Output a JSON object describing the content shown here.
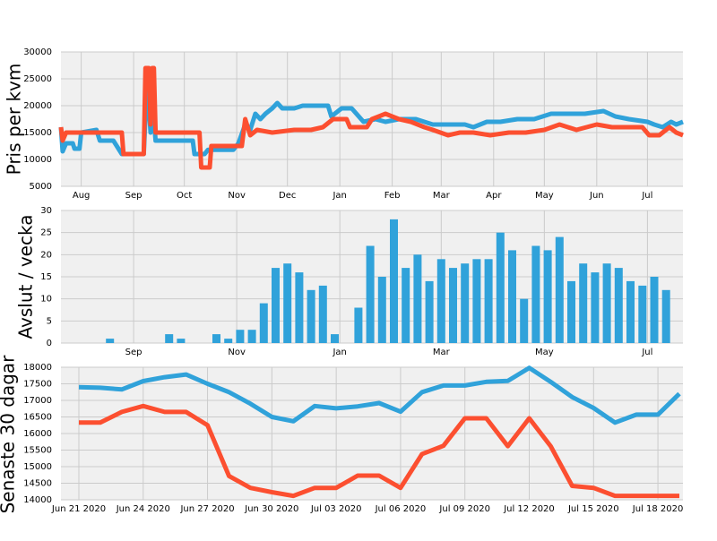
{
  "chart_data": [
    {
      "type": "line",
      "ylabel": "Pris per kvm",
      "ylim": [
        5000,
        30000
      ],
      "yticks": [
        "5000",
        "10000",
        "15000",
        "20000",
        "25000",
        "30000"
      ],
      "x_range": [
        "2019-07-20",
        "2020-07-22"
      ],
      "xticks": [
        {
          "date": "2019-08-01",
          "label": "Aug"
        },
        {
          "date": "2019-09-01",
          "label": "Sep"
        },
        {
          "date": "2019-10-01",
          "label": "Oct"
        },
        {
          "date": "2019-11-01",
          "label": "Nov"
        },
        {
          "date": "2019-12-01",
          "label": "Dec"
        },
        {
          "date": "2020-01-01",
          "label": "Jan"
        },
        {
          "date": "2020-02-01",
          "label": "Feb"
        },
        {
          "date": "2020-03-01",
          "label": "Mar"
        },
        {
          "date": "2020-04-01",
          "label": "Apr"
        },
        {
          "date": "2020-05-01",
          "label": "May"
        },
        {
          "date": "2020-06-01",
          "label": "Jun"
        },
        {
          "date": "2020-07-01",
          "label": "Jul"
        }
      ],
      "grid": true,
      "series": [
        {
          "color": "#30a2da",
          "points": [
            [
              "2019-07-20",
              16000
            ],
            [
              "2019-07-21",
              11500
            ],
            [
              "2019-07-23",
              13000
            ],
            [
              "2019-07-27",
              13000
            ],
            [
              "2019-07-28",
              12000
            ],
            [
              "2019-07-31",
              12000
            ],
            [
              "2019-08-01",
              15000
            ],
            [
              "2019-08-10",
              15500
            ],
            [
              "2019-08-12",
              13500
            ],
            [
              "2019-08-20",
              13500
            ],
            [
              "2019-08-25",
              11000
            ],
            [
              "2019-09-07",
              11000
            ],
            [
              "2019-09-09",
              25000
            ],
            [
              "2019-09-11",
              15000
            ],
            [
              "2019-09-13",
              17500
            ],
            [
              "2019-09-14",
              13500
            ],
            [
              "2019-10-01",
              13500
            ],
            [
              "2019-10-06",
              13500
            ],
            [
              "2019-10-07",
              11000
            ],
            [
              "2019-10-10",
              11000
            ],
            [
              "2019-10-13",
              11000
            ],
            [
              "2019-10-15",
              11800
            ],
            [
              "2019-10-30",
              11800
            ],
            [
              "2019-11-02",
              13000
            ],
            [
              "2019-11-06",
              16500
            ],
            [
              "2019-11-09",
              15500
            ],
            [
              "2019-11-12",
              18500
            ],
            [
              "2019-11-15",
              17500
            ],
            [
              "2019-11-18",
              18500
            ],
            [
              "2019-11-22",
              19500
            ],
            [
              "2019-11-25",
              20500
            ],
            [
              "2019-11-28",
              19500
            ],
            [
              "2019-12-05",
              19500
            ],
            [
              "2019-12-10",
              20000
            ],
            [
              "2019-12-20",
              20000
            ],
            [
              "2019-12-25",
              20000
            ],
            [
              "2019-12-27",
              18000
            ],
            [
              "2020-01-02",
              19500
            ],
            [
              "2020-01-08",
              19500
            ],
            [
              "2020-01-15",
              17000
            ],
            [
              "2020-01-22",
              17500
            ],
            [
              "2020-01-28",
              17000
            ],
            [
              "2020-02-05",
              17500
            ],
            [
              "2020-02-15",
              17500
            ],
            [
              "2020-02-25",
              16500
            ],
            [
              "2020-03-05",
              16500
            ],
            [
              "2020-03-15",
              16500
            ],
            [
              "2020-03-20",
              16000
            ],
            [
              "2020-03-28",
              17000
            ],
            [
              "2020-04-05",
              17000
            ],
            [
              "2020-04-15",
              17500
            ],
            [
              "2020-04-25",
              17500
            ],
            [
              "2020-05-05",
              18500
            ],
            [
              "2020-05-15",
              18500
            ],
            [
              "2020-05-25",
              18500
            ],
            [
              "2020-06-05",
              19000
            ],
            [
              "2020-06-12",
              18000
            ],
            [
              "2020-06-20",
              17500
            ],
            [
              "2020-07-01",
              17000
            ],
            [
              "2020-07-05",
              16500
            ],
            [
              "2020-07-10",
              16000
            ],
            [
              "2020-07-15",
              17000
            ],
            [
              "2020-07-18",
              16500
            ],
            [
              "2020-07-22",
              17000
            ]
          ]
        },
        {
          "color": "#fc4f30",
          "points": [
            [
              "2019-07-20",
              16000
            ],
            [
              "2019-07-21",
              13500
            ],
            [
              "2019-07-23",
              15000
            ],
            [
              "2019-08-25",
              15000
            ],
            [
              "2019-08-26",
              11000
            ],
            [
              "2019-09-07",
              11000
            ],
            [
              "2019-09-08",
              27000
            ],
            [
              "2019-09-10",
              27000
            ],
            [
              "2019-09-11",
              16500
            ],
            [
              "2019-09-12",
              27000
            ],
            [
              "2019-09-13",
              27000
            ],
            [
              "2019-09-14",
              15000
            ],
            [
              "2019-10-10",
              15000
            ],
            [
              "2019-10-11",
              8500
            ],
            [
              "2019-10-16",
              8500
            ],
            [
              "2019-10-17",
              12500
            ],
            [
              "2019-11-04",
              12500
            ],
            [
              "2019-11-06",
              17500
            ],
            [
              "2019-11-09",
              14500
            ],
            [
              "2019-11-13",
              15500
            ],
            [
              "2019-11-22",
              15000
            ],
            [
              "2019-12-05",
              15500
            ],
            [
              "2019-12-15",
              15500
            ],
            [
              "2019-12-22",
              16000
            ],
            [
              "2019-12-28",
              17500
            ],
            [
              "2020-01-05",
              17500
            ],
            [
              "2020-01-07",
              16000
            ],
            [
              "2020-01-17",
              16000
            ],
            [
              "2020-01-20",
              17500
            ],
            [
              "2020-01-28",
              18500
            ],
            [
              "2020-02-05",
              17500
            ],
            [
              "2020-02-12",
              17000
            ],
            [
              "2020-02-20",
              16000
            ],
            [
              "2020-02-25",
              15500
            ],
            [
              "2020-03-05",
              14500
            ],
            [
              "2020-03-12",
              15000
            ],
            [
              "2020-03-20",
              15000
            ],
            [
              "2020-03-30",
              14500
            ],
            [
              "2020-04-10",
              15000
            ],
            [
              "2020-04-20",
              15000
            ],
            [
              "2020-05-01",
              15500
            ],
            [
              "2020-05-10",
              16500
            ],
            [
              "2020-05-20",
              15500
            ],
            [
              "2020-06-01",
              16500
            ],
            [
              "2020-06-10",
              16000
            ],
            [
              "2020-06-20",
              16000
            ],
            [
              "2020-06-28",
              16000
            ],
            [
              "2020-07-02",
              14500
            ],
            [
              "2020-07-08",
              14500
            ],
            [
              "2020-07-14",
              16000
            ],
            [
              "2020-07-18",
              15000
            ],
            [
              "2020-07-22",
              14500
            ]
          ]
        }
      ]
    },
    {
      "type": "bar",
      "ylabel": "Avslut / vecka",
      "ylim": [
        0,
        30
      ],
      "yticks": [
        "0",
        "5",
        "10",
        "15",
        "20",
        "25",
        "30"
      ],
      "x_range": [
        "2019-07-20",
        "2020-07-22"
      ],
      "xticks": [
        {
          "date": "2019-09-01",
          "label": "Sep"
        },
        {
          "date": "2019-11-01",
          "label": "Nov"
        },
        {
          "date": "2020-01-01",
          "label": "Jan"
        },
        {
          "date": "2020-03-01",
          "label": "Mar"
        },
        {
          "date": "2020-05-01",
          "label": "May"
        },
        {
          "date": "2020-07-01",
          "label": "Jul"
        }
      ],
      "grid": true,
      "color": "#30a2da",
      "bars": [
        [
          "2019-08-18",
          1
        ],
        [
          "2019-09-22",
          2
        ],
        [
          "2019-09-29",
          1
        ],
        [
          "2019-10-20",
          2
        ],
        [
          "2019-10-27",
          1
        ],
        [
          "2019-11-03",
          3
        ],
        [
          "2019-11-10",
          3
        ],
        [
          "2019-11-17",
          9
        ],
        [
          "2019-11-24",
          17
        ],
        [
          "2019-12-01",
          18
        ],
        [
          "2019-12-08",
          16
        ],
        [
          "2019-12-15",
          12
        ],
        [
          "2019-12-22",
          13
        ],
        [
          "2019-12-29",
          2
        ],
        [
          "2020-01-12",
          8
        ],
        [
          "2020-01-19",
          22
        ],
        [
          "2020-01-26",
          15
        ],
        [
          "2020-02-02",
          28
        ],
        [
          "2020-02-09",
          17
        ],
        [
          "2020-02-16",
          20
        ],
        [
          "2020-02-23",
          14
        ],
        [
          "2020-03-01",
          19
        ],
        [
          "2020-03-08",
          17
        ],
        [
          "2020-03-15",
          18
        ],
        [
          "2020-03-22",
          19
        ],
        [
          "2020-03-29",
          19
        ],
        [
          "2020-04-05",
          25
        ],
        [
          "2020-04-12",
          21
        ],
        [
          "2020-04-19",
          10
        ],
        [
          "2020-04-26",
          22
        ],
        [
          "2020-05-03",
          21
        ],
        [
          "2020-05-10",
          24
        ],
        [
          "2020-05-17",
          14
        ],
        [
          "2020-05-24",
          18
        ],
        [
          "2020-05-31",
          16
        ],
        [
          "2020-06-07",
          18
        ],
        [
          "2020-06-14",
          17
        ],
        [
          "2020-06-21",
          14
        ],
        [
          "2020-06-28",
          13
        ],
        [
          "2020-07-05",
          15
        ],
        [
          "2020-07-12",
          12
        ]
      ]
    },
    {
      "type": "line",
      "ylabel": "Senaste 30 dagar",
      "ylim": [
        14000,
        18000
      ],
      "yticks": [
        "14000",
        "14500",
        "15000",
        "15500",
        "16000",
        "16500",
        "17000",
        "17500",
        "18000"
      ],
      "x": [
        "2020-06-21",
        "2020-06-22",
        "2020-06-23",
        "2020-06-24",
        "2020-06-25",
        "2020-06-26",
        "2020-06-27",
        "2020-06-28",
        "2020-06-29",
        "2020-06-30",
        "2020-07-01",
        "2020-07-02",
        "2020-07-03",
        "2020-07-04",
        "2020-07-05",
        "2020-07-06",
        "2020-07-07",
        "2020-07-08",
        "2020-07-09",
        "2020-07-10",
        "2020-07-11",
        "2020-07-12",
        "2020-07-13",
        "2020-07-14",
        "2020-07-15",
        "2020-07-16",
        "2020-07-17",
        "2020-07-18",
        "2020-07-19"
      ],
      "xlim": [
        "2020-06-21",
        "2020-07-19"
      ],
      "xticks": [
        {
          "date": "2020-06-21",
          "label": "Jun 21 2020"
        },
        {
          "date": "2020-06-24",
          "label": "Jun 24 2020"
        },
        {
          "date": "2020-06-27",
          "label": "Jun 27 2020"
        },
        {
          "date": "2020-06-30",
          "label": "Jun 30 2020"
        },
        {
          "date": "2020-07-03",
          "label": "Jul 03 2020"
        },
        {
          "date": "2020-07-06",
          "label": "Jul 06 2020"
        },
        {
          "date": "2020-07-09",
          "label": "Jul 09 2020"
        },
        {
          "date": "2020-07-12",
          "label": "Jul 12 2020"
        },
        {
          "date": "2020-07-15",
          "label": "Jul 15 2020"
        },
        {
          "date": "2020-07-18",
          "label": "Jul 18 2020"
        }
      ],
      "grid": true,
      "series": [
        {
          "color": "#30a2da",
          "values": [
            17400,
            17380,
            17330,
            17580,
            17700,
            17780,
            17500,
            17250,
            16900,
            16500,
            16370,
            16830,
            16760,
            16820,
            16920,
            16660,
            17250,
            17450,
            17450,
            17560,
            17590,
            17980,
            17560,
            17100,
            16770,
            16330,
            16570,
            16570,
            17200
          ]
        },
        {
          "color": "#fc4f30",
          "values": [
            16330,
            16330,
            16650,
            16830,
            16650,
            16650,
            16250,
            14720,
            14360,
            14230,
            14120,
            14360,
            14360,
            14730,
            14730,
            14360,
            15380,
            15630,
            16460,
            16460,
            15620,
            16460,
            15620,
            14420,
            14360,
            14120,
            14120,
            14120,
            14120
          ]
        }
      ]
    }
  ]
}
